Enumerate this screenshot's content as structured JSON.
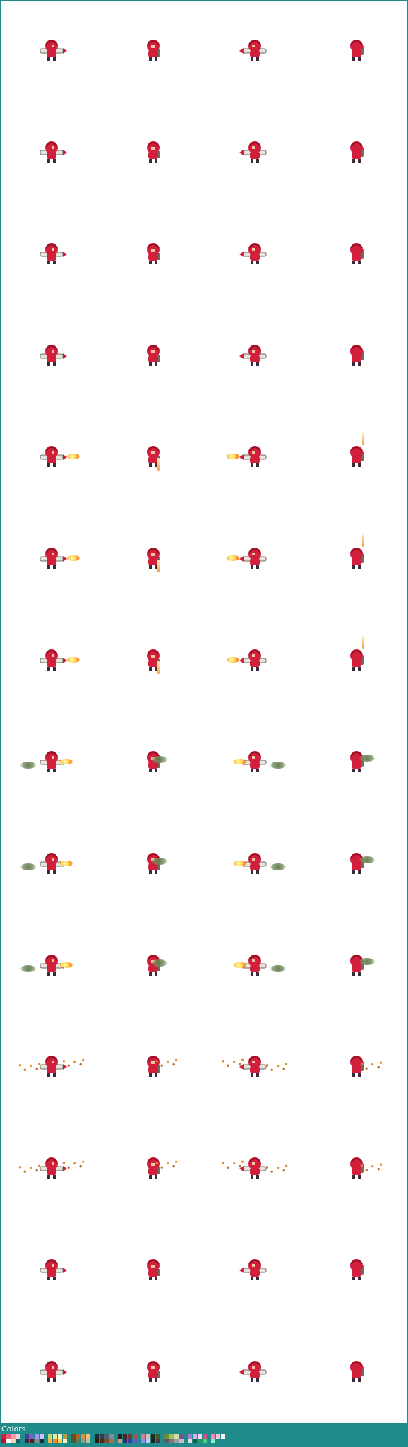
{
  "sheet": {
    "columns": 4,
    "rows": 14,
    "frames": [
      [
        "right-idle",
        "front-idle",
        "left-idle",
        "back-idle"
      ],
      [
        "right-idle",
        "front-idle",
        "left-idle",
        "back-idle"
      ],
      [
        "right-idle",
        "front-idle",
        "left-idle",
        "back-idle"
      ],
      [
        "right-idle",
        "front-idle",
        "left-idle",
        "back-idle"
      ],
      [
        "right-fire-1",
        "front-fire-1",
        "left-fire-1",
        "back-fire-1"
      ],
      [
        "right-fire-2",
        "front-fire-2",
        "left-fire-2",
        "back-fire-2"
      ],
      [
        "right-fire-3",
        "front-fire-3",
        "left-fire-3",
        "back-fire-3"
      ],
      [
        "right-smoke-1",
        "front-smoke-1",
        "left-smoke-1",
        "back-smoke-1"
      ],
      [
        "right-smoke-2",
        "front-smoke-2",
        "left-smoke-2",
        "back-smoke-2"
      ],
      [
        "right-smoke-3",
        "front-smoke-3",
        "left-smoke-3",
        "back-smoke-3"
      ],
      [
        "right-sparks-1",
        "front-sparks-1",
        "left-sparks-1",
        "back-sparks-1"
      ],
      [
        "right-sparks-2",
        "front-sparks-2",
        "left-sparks-2",
        "back-sparks-2"
      ],
      [
        "right-empty",
        "front-empty",
        "left-empty",
        "back-empty"
      ],
      [
        "right-empty",
        "front-empty",
        "left-empty",
        "back-empty"
      ]
    ]
  },
  "colors": {
    "accent": "#1f8b8b",
    "body": "#d21f3c",
    "body_dark": "#8e1226",
    "launcher": "#e8e4dc",
    "launcher_dark": "#6f6a62",
    "skin": "#f1c7a4",
    "boots": "#3a2a3a"
  },
  "footer": {
    "label": "Colors",
    "palette_row_1": [
      "#d21f3c",
      "#e85b72",
      "#f19bb0",
      "#fbd0de",
      "#4b3f9b",
      "#6d63c9",
      "#9f95f0",
      "#c9c2ff",
      "#c7d96b",
      "#e2ea9f",
      "#f5f1c2",
      "#b99a3f",
      "#6f4a1f",
      "#a8662a",
      "#d8913f",
      "#f3c17a",
      "#1a2b3a",
      "#2f3f4f",
      "#4c5e6f",
      "#7a8b99",
      "#2b1a1a",
      "#4a2626",
      "#6e3a3a",
      "#9b5a5a",
      "#c78a8a",
      "#e8b8b8",
      "#1f2a1f",
      "#3a5a2f",
      "#6b8b3f",
      "#9fbf6a",
      "#c9e39f",
      "#7a4fa5",
      "#a57bd1",
      "#d0b1f0",
      "#f0d9ff",
      "#d24f8a",
      "#f08ab0",
      "#f7c1d7",
      "#fff1f6"
    ],
    "palette_row_2": [
      "#b5122d",
      "#ffffff",
      "#f4d6a6",
      "#1d5f5f",
      "#3a2a3a",
      "#6e0f22",
      "#8b8680",
      "#0f3535",
      "#f7b24a",
      "#ff8a1a",
      "#ffd24a",
      "#fff3c2",
      "#3f5e3a",
      "#5f7850",
      "#8aa070",
      "#b4c79a",
      "#2a1a12",
      "#4a2d1e",
      "#7a4a2c",
      "#a8704a",
      "#d19b74",
      "#2a2a6e",
      "#3e3ea0",
      "#5a5ad1",
      "#8f8fea",
      "#c5c5ff",
      "#1f1f1f",
      "#3c3c3c",
      "#5a5a5a",
      "#7a7a7a",
      "#9d9d9d",
      "#c0c0c0",
      "#e0e0e0",
      "#115f3a",
      "#1e9b5c",
      "#3fd18a",
      "#8af0bf"
    ]
  }
}
